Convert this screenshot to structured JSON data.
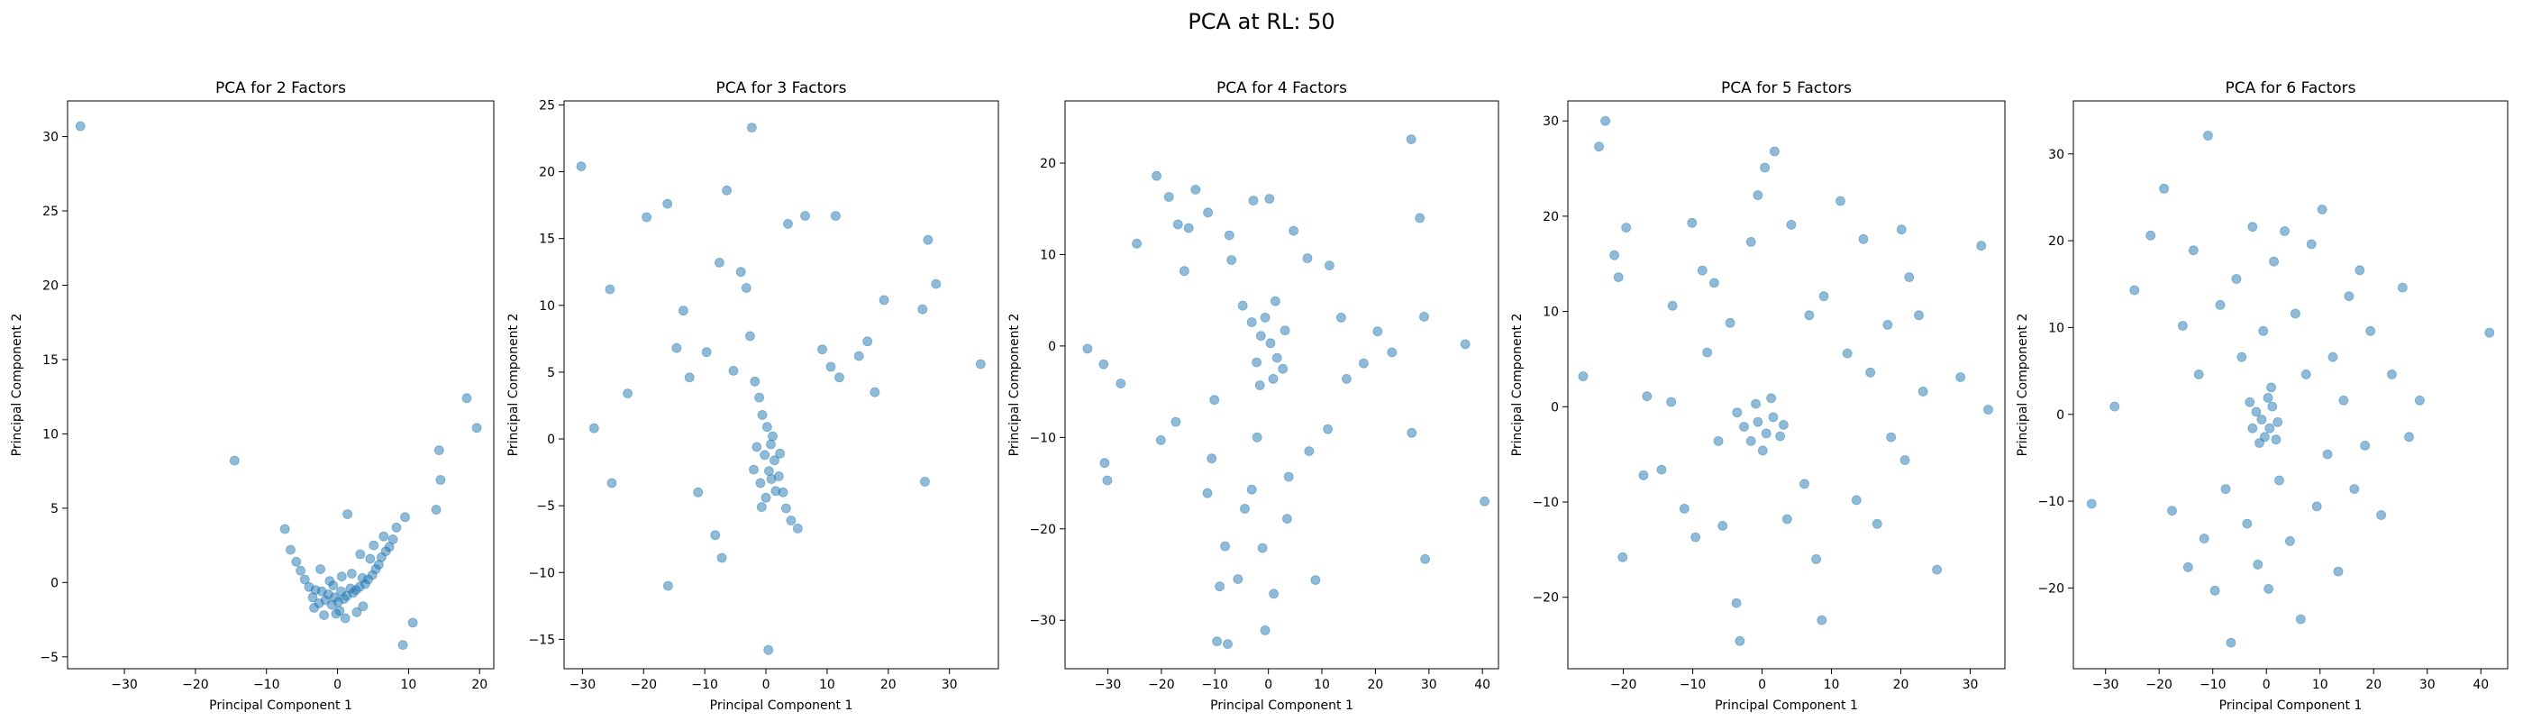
{
  "figure": {
    "suptitle": "PCA at RL: 50"
  },
  "style": {
    "point_color": "#1f77b4",
    "point_alpha": 0.5
  },
  "chart_data": [
    {
      "type": "scatter",
      "title": "PCA for 2 Factors",
      "xlabel": "Principal Component 1",
      "ylabel": "Principal Component 2",
      "xlim": [
        -38,
        22
      ],
      "ylim": [
        -5.8,
        32.4
      ],
      "xticks": [
        -30,
        -20,
        -10,
        0,
        10,
        20
      ],
      "yticks": [
        -5,
        0,
        5,
        10,
        15,
        20,
        25,
        30
      ],
      "grid": false,
      "points": [
        [
          -36.2,
          30.7
        ],
        [
          -14.5,
          8.2
        ],
        [
          19.6,
          10.4
        ],
        [
          18.2,
          12.4
        ],
        [
          14.3,
          8.9
        ],
        [
          14.5,
          6.9
        ],
        [
          13.9,
          4.9
        ],
        [
          9.5,
          4.4
        ],
        [
          10.6,
          -2.7
        ],
        [
          9.2,
          -4.2
        ],
        [
          8.3,
          3.7
        ],
        [
          7.8,
          2.9
        ],
        [
          7.3,
          2.4
        ],
        [
          6.8,
          2.1
        ],
        [
          6.2,
          1.7
        ],
        [
          5.8,
          1.2
        ],
        [
          5.4,
          0.9
        ],
        [
          4.9,
          0.5
        ],
        [
          4.3,
          0.2
        ],
        [
          3.9,
          -0.1
        ],
        [
          3.5,
          0.3
        ],
        [
          3.1,
          -0.3
        ],
        [
          2.6,
          -0.5
        ],
        [
          2.2,
          -0.7
        ],
        [
          1.8,
          -0.4
        ],
        [
          1.3,
          -0.9
        ],
        [
          0.9,
          -1.1
        ],
        [
          0.5,
          -0.6
        ],
        [
          0.1,
          -1.3
        ],
        [
          -0.4,
          -1.0
        ],
        [
          -0.8,
          -1.5
        ],
        [
          -1.3,
          -0.8
        ],
        [
          -1.7,
          -1.2
        ],
        [
          -2.2,
          -0.6
        ],
        [
          -2.6,
          -1.4
        ],
        [
          -3.1,
          -0.5
        ],
        [
          -3.5,
          -1.0
        ],
        [
          -4.0,
          -0.3
        ],
        [
          -4.6,
          0.2
        ],
        [
          -5.2,
          0.8
        ],
        [
          -5.8,
          1.4
        ],
        [
          -6.6,
          2.2
        ],
        [
          -7.4,
          3.6
        ],
        [
          1.4,
          4.6
        ],
        [
          3.2,
          1.9
        ],
        [
          -2.4,
          0.9
        ],
        [
          0.6,
          0.4
        ],
        [
          -1.1,
          0.1
        ],
        [
          2.0,
          0.6
        ],
        [
          4.6,
          1.6
        ],
        [
          5.1,
          2.5
        ],
        [
          6.5,
          3.1
        ],
        [
          -0.2,
          -2.1
        ],
        [
          1.1,
          -2.4
        ],
        [
          2.7,
          -2.0
        ],
        [
          -1.9,
          -2.2
        ],
        [
          -3.3,
          -1.7
        ],
        [
          3.6,
          -1.6
        ],
        [
          0.3,
          -1.9
        ],
        [
          -0.6,
          -0.2
        ]
      ]
    },
    {
      "type": "scatter",
      "title": "PCA for 3 Factors",
      "xlabel": "Principal Component 1",
      "ylabel": "Principal Component 2",
      "xlim": [
        -33,
        38
      ],
      "ylim": [
        -17.2,
        25.3
      ],
      "xticks": [
        -30,
        -20,
        -10,
        0,
        10,
        20,
        30
      ],
      "yticks": [
        -15,
        -10,
        -5,
        0,
        5,
        10,
        15,
        20,
        25
      ],
      "grid": false,
      "points": [
        [
          -30.2,
          20.4
        ],
        [
          -2.3,
          23.3
        ],
        [
          -28.1,
          0.8
        ],
        [
          -25.5,
          11.2
        ],
        [
          -25.2,
          -3.3
        ],
        [
          -22.6,
          3.4
        ],
        [
          -19.5,
          16.6
        ],
        [
          -16.1,
          17.6
        ],
        [
          -16.0,
          -11.0
        ],
        [
          -14.6,
          6.8
        ],
        [
          -13.5,
          9.6
        ],
        [
          -12.5,
          4.6
        ],
        [
          -11.1,
          -4.0
        ],
        [
          -9.7,
          6.5
        ],
        [
          -8.3,
          -7.2
        ],
        [
          -7.6,
          13.2
        ],
        [
          -7.2,
          -8.9
        ],
        [
          -6.4,
          18.6
        ],
        [
          -5.3,
          5.1
        ],
        [
          -4.1,
          12.5
        ],
        [
          -3.2,
          11.3
        ],
        [
          -2.6,
          7.7
        ],
        [
          -1.8,
          4.3
        ],
        [
          -1.1,
          3.1
        ],
        [
          -0.6,
          1.8
        ],
        [
          0.2,
          0.9
        ],
        [
          0.8,
          -0.4
        ],
        [
          1.4,
          -1.6
        ],
        [
          2.1,
          -2.8
        ],
        [
          2.8,
          -4.0
        ],
        [
          3.3,
          -5.2
        ],
        [
          4.1,
          -6.1
        ],
        [
          5.2,
          -6.7
        ],
        [
          0.4,
          -15.8
        ],
        [
          3.6,
          16.1
        ],
        [
          6.4,
          16.7
        ],
        [
          11.4,
          16.7
        ],
        [
          9.2,
          6.7
        ],
        [
          10.6,
          5.4
        ],
        [
          12.0,
          4.6
        ],
        [
          15.2,
          6.2
        ],
        [
          16.6,
          7.3
        ],
        [
          17.8,
          3.5
        ],
        [
          19.3,
          10.4
        ],
        [
          25.6,
          9.7
        ],
        [
          26.5,
          14.9
        ],
        [
          27.8,
          11.6
        ],
        [
          26.0,
          -3.2
        ],
        [
          35.1,
          5.6
        ],
        [
          -0.2,
          -1.2
        ],
        [
          0.5,
          -2.4
        ],
        [
          -0.9,
          -3.3
        ],
        [
          1.6,
          -3.9
        ],
        [
          -1.5,
          -0.6
        ],
        [
          1.1,
          0.2
        ],
        [
          0.0,
          -4.4
        ],
        [
          -0.7,
          -5.1
        ],
        [
          2.3,
          -1.1
        ],
        [
          -2.0,
          -2.3
        ],
        [
          0.9,
          -3.0
        ]
      ]
    },
    {
      "type": "scatter",
      "title": "PCA for 4 Factors",
      "xlabel": "Principal Component 1",
      "ylabel": "Principal Component 2",
      "xlim": [
        -38,
        43
      ],
      "ylim": [
        -35.3,
        26.8
      ],
      "xticks": [
        -30,
        -20,
        -10,
        0,
        10,
        20,
        30,
        40
      ],
      "yticks": [
        -30,
        -20,
        -10,
        0,
        10,
        20
      ],
      "grid": false,
      "points": [
        [
          -33.8,
          -0.3
        ],
        [
          -30.8,
          -2.0
        ],
        [
          -30.6,
          -12.8
        ],
        [
          -30.1,
          -14.7
        ],
        [
          -27.6,
          -4.1
        ],
        [
          -24.6,
          11.2
        ],
        [
          -20.9,
          18.6
        ],
        [
          -18.6,
          16.3
        ],
        [
          -20.1,
          -10.3
        ],
        [
          -17.3,
          -8.3
        ],
        [
          -16.9,
          13.3
        ],
        [
          -15.7,
          8.2
        ],
        [
          -14.9,
          12.9
        ],
        [
          -13.6,
          17.1
        ],
        [
          -11.3,
          14.6
        ],
        [
          -11.4,
          -16.1
        ],
        [
          -10.6,
          -12.3
        ],
        [
          -10.1,
          -5.9
        ],
        [
          -9.6,
          -32.3
        ],
        [
          -7.6,
          -32.6
        ],
        [
          -8.1,
          -21.9
        ],
        [
          -9.1,
          -26.3
        ],
        [
          -5.7,
          -25.5
        ],
        [
          -4.4,
          -17.8
        ],
        [
          -3.1,
          -15.7
        ],
        [
          -2.1,
          -10.0
        ],
        [
          -1.1,
          -22.1
        ],
        [
          -0.6,
          -31.1
        ],
        [
          1.0,
          -27.1
        ],
        [
          3.5,
          -18.9
        ],
        [
          3.8,
          -14.3
        ],
        [
          7.6,
          -11.5
        ],
        [
          8.8,
          -25.6
        ],
        [
          11.1,
          -9.1
        ],
        [
          14.6,
          -3.6
        ],
        [
          17.8,
          -1.9
        ],
        [
          20.4,
          1.6
        ],
        [
          23.1,
          -0.7
        ],
        [
          26.8,
          -9.5
        ],
        [
          29.3,
          -23.3
        ],
        [
          36.8,
          0.2
        ],
        [
          40.4,
          -17.0
        ],
        [
          26.7,
          22.6
        ],
        [
          28.3,
          14.0
        ],
        [
          29.1,
          3.2
        ],
        [
          13.6,
          3.1
        ],
        [
          11.4,
          8.8
        ],
        [
          7.3,
          9.6
        ],
        [
          4.7,
          12.6
        ],
        [
          0.2,
          16.1
        ],
        [
          -2.8,
          15.9
        ],
        [
          -7.3,
          12.1
        ],
        [
          -6.9,
          9.4
        ],
        [
          -4.8,
          4.4
        ],
        [
          -3.1,
          2.6
        ],
        [
          -1.4,
          1.1
        ],
        [
          0.4,
          0.3
        ],
        [
          1.6,
          -1.3
        ],
        [
          2.7,
          -2.5
        ],
        [
          -0.6,
          3.1
        ],
        [
          1.3,
          4.9
        ],
        [
          -2.2,
          -1.8
        ],
        [
          0.9,
          -3.6
        ],
        [
          3.1,
          1.7
        ],
        [
          -1.6,
          -4.3
        ]
      ]
    },
    {
      "type": "scatter",
      "title": "PCA for 5 Factors",
      "xlabel": "Principal Component 1",
      "ylabel": "Principal Component 2",
      "xlim": [
        -28,
        35
      ],
      "ylim": [
        -27.5,
        32.1
      ],
      "xticks": [
        -20,
        -10,
        0,
        10,
        20,
        30
      ],
      "yticks": [
        -20,
        -10,
        0,
        10,
        20,
        30
      ],
      "grid": false,
      "points": [
        [
          -22.6,
          30.0
        ],
        [
          -23.5,
          27.3
        ],
        [
          -25.8,
          3.2
        ],
        [
          -21.3,
          15.9
        ],
        [
          -20.7,
          13.6
        ],
        [
          -19.6,
          18.8
        ],
        [
          -20.1,
          -15.8
        ],
        [
          -17.1,
          -7.2
        ],
        [
          -16.6,
          1.1
        ],
        [
          -14.5,
          -6.6
        ],
        [
          -13.1,
          0.5
        ],
        [
          -12.9,
          10.6
        ],
        [
          -11.2,
          -10.7
        ],
        [
          -10.1,
          19.3
        ],
        [
          -9.6,
          -13.7
        ],
        [
          -8.6,
          14.3
        ],
        [
          -7.9,
          5.7
        ],
        [
          -6.9,
          13.0
        ],
        [
          -6.3,
          -3.6
        ],
        [
          -5.7,
          -12.5
        ],
        [
          -4.6,
          8.8
        ],
        [
          -3.7,
          -20.6
        ],
        [
          -3.2,
          -24.6
        ],
        [
          -1.6,
          17.3
        ],
        [
          -0.6,
          22.2
        ],
        [
          0.4,
          25.1
        ],
        [
          1.8,
          26.8
        ],
        [
          4.2,
          19.1
        ],
        [
          3.6,
          -11.8
        ],
        [
          6.1,
          -8.1
        ],
        [
          6.8,
          9.6
        ],
        [
          7.8,
          -16.0
        ],
        [
          8.6,
          -22.4
        ],
        [
          8.9,
          11.6
        ],
        [
          11.3,
          21.6
        ],
        [
          12.3,
          5.6
        ],
        [
          13.6,
          -9.8
        ],
        [
          14.6,
          17.6
        ],
        [
          15.6,
          3.6
        ],
        [
          16.6,
          -12.3
        ],
        [
          18.1,
          8.6
        ],
        [
          18.6,
          -3.2
        ],
        [
          20.1,
          18.6
        ],
        [
          20.6,
          -5.6
        ],
        [
          21.2,
          13.6
        ],
        [
          22.6,
          9.6
        ],
        [
          23.2,
          1.6
        ],
        [
          25.2,
          -17.1
        ],
        [
          28.6,
          3.1
        ],
        [
          31.6,
          16.9
        ],
        [
          32.6,
          -0.3
        ],
        [
          -0.6,
          -1.6
        ],
        [
          0.6,
          -2.8
        ],
        [
          -1.6,
          -3.6
        ],
        [
          1.6,
          -1.1
        ],
        [
          -2.6,
          -2.1
        ],
        [
          0.1,
          -4.6
        ],
        [
          2.6,
          -3.1
        ],
        [
          -0.9,
          0.3
        ],
        [
          1.3,
          0.9
        ],
        [
          -3.6,
          -0.6
        ],
        [
          3.1,
          -1.9
        ]
      ]
    },
    {
      "type": "scatter",
      "title": "PCA for 6 Factors",
      "xlabel": "Principal Component 1",
      "ylabel": "Principal Component 2",
      "xlim": [
        -36,
        45
      ],
      "ylim": [
        -29.3,
        36.1
      ],
      "xticks": [
        -30,
        -20,
        -10,
        0,
        10,
        20,
        30,
        40
      ],
      "yticks": [
        -20,
        -10,
        0,
        10,
        20,
        30
      ],
      "grid": false,
      "points": [
        [
          -32.6,
          -10.3
        ],
        [
          -28.3,
          0.9
        ],
        [
          -24.6,
          14.3
        ],
        [
          -21.6,
          20.6
        ],
        [
          -19.1,
          26.0
        ],
        [
          -17.6,
          -11.1
        ],
        [
          -15.6,
          10.2
        ],
        [
          -14.6,
          -17.6
        ],
        [
          -13.6,
          18.9
        ],
        [
          -12.6,
          4.6
        ],
        [
          -11.6,
          -14.3
        ],
        [
          -10.9,
          32.1
        ],
        [
          -9.6,
          -20.3
        ],
        [
          -8.6,
          12.6
        ],
        [
          -7.6,
          -8.6
        ],
        [
          -6.6,
          -26.3
        ],
        [
          -5.6,
          15.6
        ],
        [
          -4.6,
          6.6
        ],
        [
          -3.6,
          -12.6
        ],
        [
          -2.6,
          21.6
        ],
        [
          -1.6,
          -17.3
        ],
        [
          -0.6,
          9.6
        ],
        [
          0.4,
          -20.1
        ],
        [
          1.4,
          17.6
        ],
        [
          2.4,
          -7.6
        ],
        [
          3.4,
          21.1
        ],
        [
          4.4,
          -14.6
        ],
        [
          5.4,
          11.6
        ],
        [
          6.4,
          -23.6
        ],
        [
          7.4,
          4.6
        ],
        [
          8.4,
          19.6
        ],
        [
          9.4,
          -10.6
        ],
        [
          10.4,
          23.6
        ],
        [
          11.4,
          -4.6
        ],
        [
          12.4,
          6.6
        ],
        [
          13.4,
          -18.1
        ],
        [
          14.4,
          1.6
        ],
        [
          15.4,
          13.6
        ],
        [
          16.4,
          -8.6
        ],
        [
          17.4,
          16.6
        ],
        [
          18.4,
          -3.6
        ],
        [
          19.4,
          9.6
        ],
        [
          21.4,
          -11.6
        ],
        [
          23.4,
          4.6
        ],
        [
          25.4,
          14.6
        ],
        [
          26.6,
          -2.6
        ],
        [
          28.6,
          1.6
        ],
        [
          41.6,
          9.4
        ],
        [
          -0.9,
          -0.6
        ],
        [
          0.6,
          -1.6
        ],
        [
          -1.9,
          0.3
        ],
        [
          1.1,
          0.9
        ],
        [
          -0.3,
          -2.6
        ],
        [
          -2.6,
          -1.6
        ],
        [
          2.1,
          -0.9
        ],
        [
          0.3,
          1.9
        ],
        [
          -1.3,
          -3.3
        ],
        [
          1.8,
          -2.9
        ],
        [
          -3.1,
          1.4
        ],
        [
          0.9,
          3.1
        ]
      ]
    }
  ]
}
